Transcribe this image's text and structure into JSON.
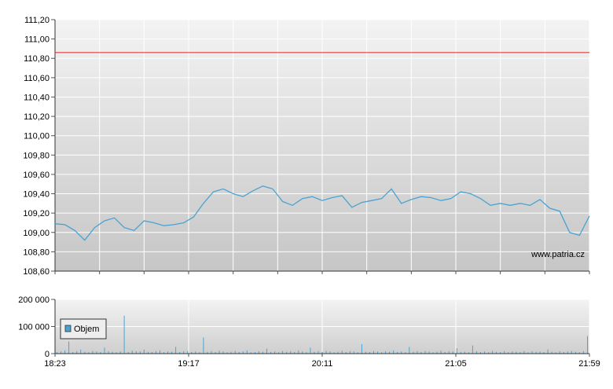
{
  "chart_data": [
    {
      "type": "line",
      "title": "",
      "x_ticks": [
        "18:23",
        "19:17",
        "20:11",
        "21:05",
        "21:59"
      ],
      "y_ticks": [
        "111,20",
        "111,00",
        "110,80",
        "110,60",
        "110,40",
        "110,20",
        "110,00",
        "109,80",
        "109,60",
        "109,40",
        "109,20",
        "109,00",
        "108,80",
        "108,60"
      ],
      "ylim": [
        108.6,
        111.2
      ],
      "xlim": [
        "18:23",
        "21:59"
      ],
      "reference_line": {
        "value": 110.86,
        "color": "#dd2222"
      },
      "series_color": "#4aa3d2",
      "grid": true,
      "watermark": "www.patria.cz",
      "series": [
        {
          "x": [
            "18:23",
            "18:27",
            "18:31",
            "18:35",
            "18:39",
            "18:43",
            "18:47",
            "18:51",
            "18:55",
            "18:59",
            "19:03",
            "19:07",
            "19:11",
            "19:15",
            "19:19",
            "19:23",
            "19:27",
            "19:31",
            "19:35",
            "19:39",
            "19:43",
            "19:47",
            "19:51",
            "19:55",
            "19:59",
            "20:03",
            "20:07",
            "20:11",
            "20:15",
            "20:19",
            "20:23",
            "20:27",
            "20:31",
            "20:35",
            "20:39",
            "20:43",
            "20:47",
            "20:51",
            "20:55",
            "20:59",
            "21:03",
            "21:07",
            "21:11",
            "21:15",
            "21:19",
            "21:23",
            "21:27",
            "21:31",
            "21:35",
            "21:39",
            "21:43",
            "21:47",
            "21:51",
            "21:55",
            "21:59"
          ],
          "values": [
            109.09,
            109.08,
            109.02,
            108.92,
            109.05,
            109.12,
            109.15,
            109.05,
            109.02,
            109.12,
            109.1,
            109.07,
            109.08,
            109.1,
            109.16,
            109.3,
            109.42,
            109.45,
            109.4,
            109.37,
            109.43,
            109.48,
            109.45,
            109.32,
            109.28,
            109.35,
            109.37,
            109.33,
            109.36,
            109.38,
            109.26,
            109.31,
            109.33,
            109.35,
            109.45,
            109.3,
            109.34,
            109.37,
            109.36,
            109.33,
            109.35,
            109.42,
            109.4,
            109.35,
            109.28,
            109.3,
            109.28,
            109.3,
            109.28,
            109.34,
            109.25,
            109.22,
            109.0,
            108.97,
            109.17
          ]
        }
      ]
    },
    {
      "type": "bar",
      "y_ticks": [
        "200 000",
        "100 000",
        "0"
      ],
      "ylim": [
        0,
        200000
      ],
      "legend": [
        {
          "name": "Objem",
          "color": "#4aa3d2"
        }
      ],
      "legend_position": "top-left",
      "x_ticks": [
        "18:23",
        "19:17",
        "20:11",
        "21:05",
        "21:59"
      ],
      "series": [
        {
          "name": "Objem",
          "values": [
            5000,
            8000,
            12000,
            45000,
            6000,
            9000,
            15000,
            7000,
            5000,
            10000,
            8000,
            6000,
            22000,
            9000,
            7000,
            5000,
            8000,
            140000,
            6000,
            11000,
            9000,
            8000,
            15000,
            7000,
            6000,
            9000,
            12000,
            5000,
            8000,
            7000,
            25000,
            6000,
            9000,
            10000,
            6000,
            8000,
            5000,
            60000,
            7000,
            9000,
            6000,
            11000,
            8000,
            5000,
            7000,
            10000,
            6000,
            8000,
            12000,
            5000,
            6000,
            9000,
            7000,
            18000,
            6000,
            8000,
            5000,
            10000,
            7000,
            9000,
            6000,
            12000,
            8000,
            5000,
            22000,
            7000,
            9000,
            6000,
            10000,
            8000,
            5000,
            7000,
            11000,
            6000,
            9000,
            8000,
            5000,
            35000,
            7000,
            6000,
            10000,
            8000,
            5000,
            9000,
            7000,
            12000,
            6000,
            8000,
            5000,
            25000,
            7000,
            9000,
            6000,
            10000,
            8000,
            5000,
            7000,
            11000,
            6000,
            9000,
            8000,
            20000,
            6000,
            7000,
            5000,
            30000,
            9000,
            6000,
            8000,
            5000,
            10000,
            7000,
            6000,
            9000,
            5000,
            8000,
            7000,
            6000,
            10000,
            5000,
            9000,
            7000,
            8000,
            6000,
            15000,
            7000,
            5000,
            9000,
            6000,
            8000,
            10000,
            7000,
            5000,
            9000,
            65000
          ]
        }
      ]
    }
  ]
}
